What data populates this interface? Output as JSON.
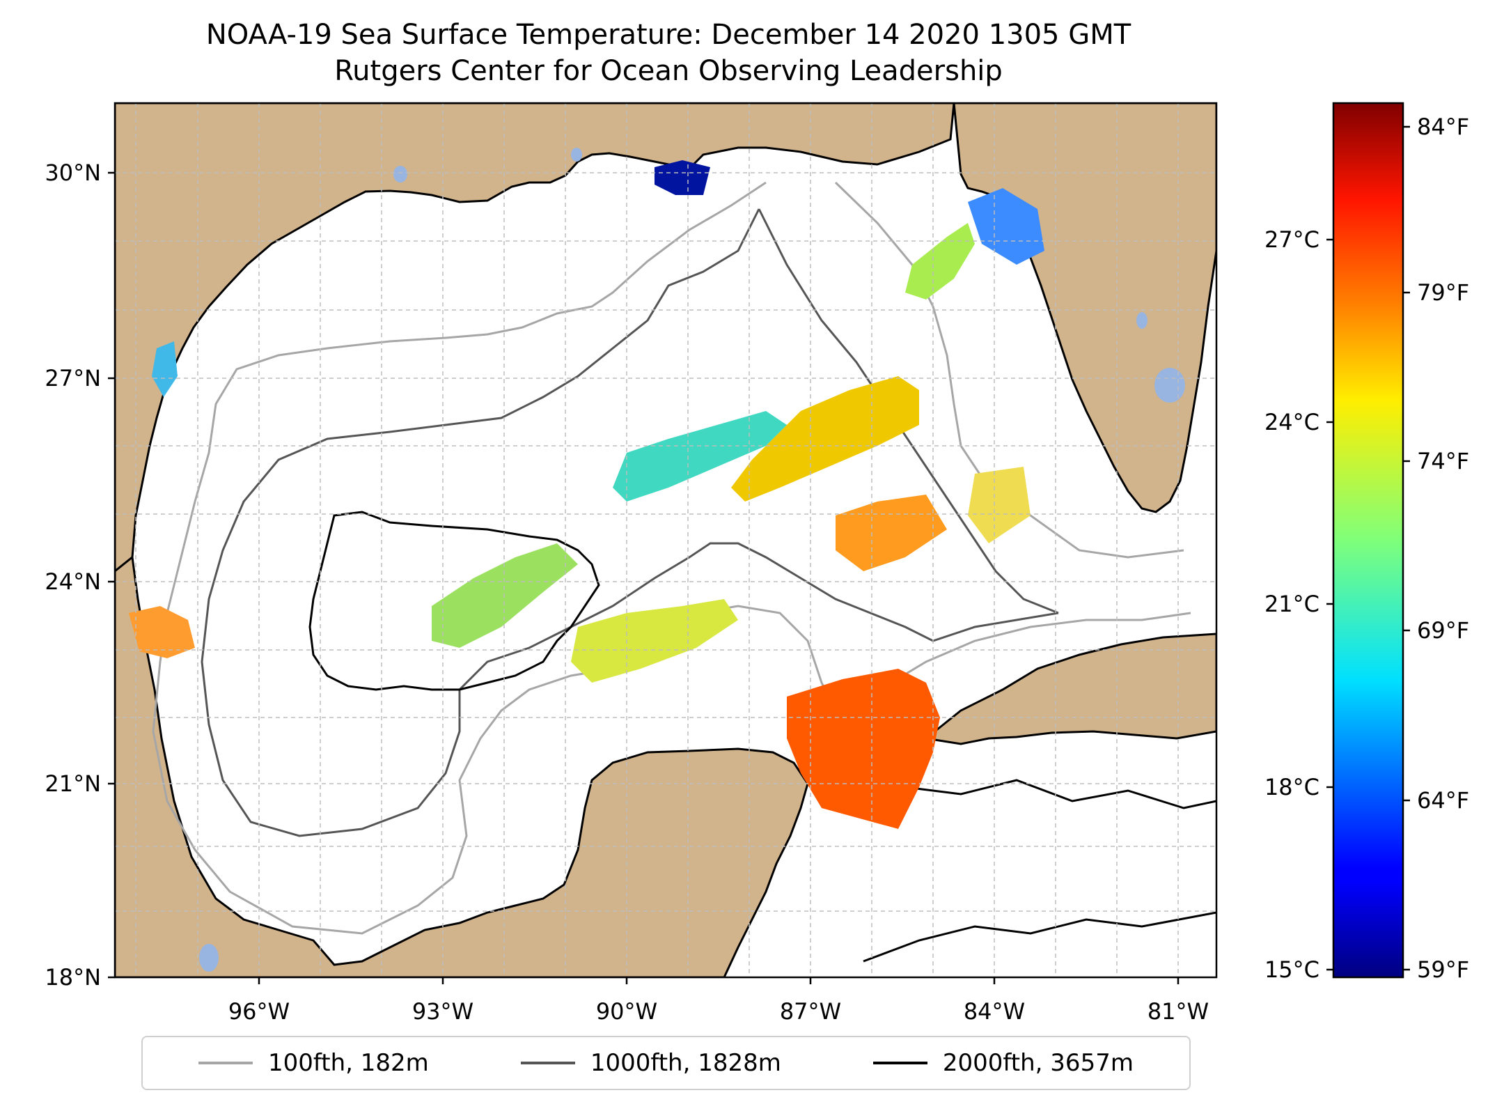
{
  "title": "NOAA-19 Sea Surface Temperature: December 14 2020 1305 GMT",
  "subtitle": "Rutgers Center for Ocean Observing Leadership",
  "map": {
    "lon_range": [
      -98.0,
      -80.0
    ],
    "lat_range": [
      18.0,
      31.0
    ],
    "x_ticks": [
      "96°W",
      "93°W",
      "90°W",
      "87°W",
      "84°W",
      "81°W"
    ],
    "y_ticks": [
      "18°N",
      "21°N",
      "24°N",
      "27°N",
      "30°N"
    ],
    "land_color": "#d2b48c",
    "lake_color": "#98b4e0",
    "gridlines": "dashed"
  },
  "colorbar": {
    "colormap": "jet",
    "celsius_range": [
      15,
      29
    ],
    "celsius_labels": [
      "15°C",
      "18°C",
      "21°C",
      "24°C",
      "27°C"
    ],
    "fahrenheit_labels": [
      "59°F",
      "64°F",
      "69°F",
      "74°F",
      "79°F",
      "84°F"
    ]
  },
  "legend": [
    {
      "label": "100fth, 182m",
      "color": "#a6a6a6"
    },
    {
      "label": "1000fth, 1828m",
      "color": "#555555"
    },
    {
      "label": "2000fth, 3657m",
      "color": "#000000"
    }
  ]
}
